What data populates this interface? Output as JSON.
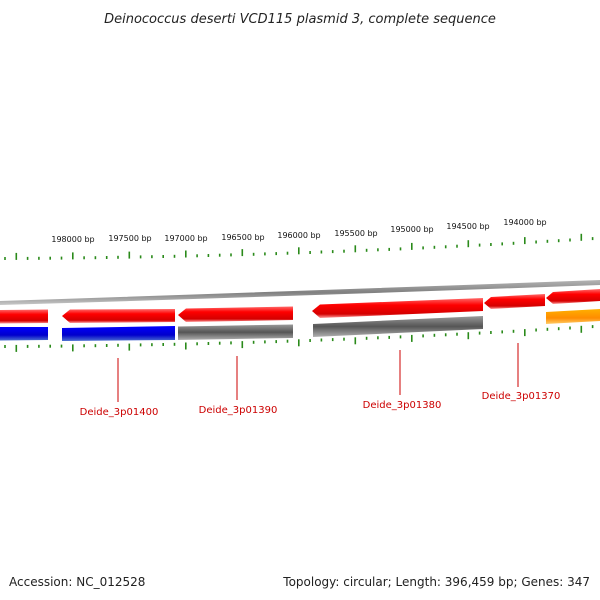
{
  "title": "Deinococcus deserti VCD115 plasmid 3, complete sequence",
  "footer": {
    "accession": "Accession: NC_012528",
    "summary": "Topology: circular; Length: 396,459 bp; Genes: 347"
  },
  "colors": {
    "tick": "#2a8a1a",
    "backbone": "#8c8c8c",
    "gene_label": "#cc0000",
    "red_gene": "#e60000",
    "blue_gene": "#0000dd",
    "gray_gene": "#666666",
    "orange_gene": "#ff8c00"
  },
  "scale": {
    "tick_labels": [
      "198000 bp",
      "197500 bp",
      "197000 bp",
      "196500 bp",
      "196000 bp",
      "195500 bp",
      "195000 bp",
      "194500 bp",
      "194000 bp"
    ]
  },
  "genes": {
    "forward_strand": [
      {
        "id": "gene-a",
        "color": "red",
        "direction": "left"
      },
      {
        "id": "gene-b",
        "color": "red",
        "direction": "left"
      },
      {
        "id": "gene-c",
        "color": "red",
        "direction": "left"
      },
      {
        "id": "gene-d",
        "color": "red",
        "direction": "left"
      },
      {
        "id": "gene-e",
        "color": "red",
        "direction": "left"
      },
      {
        "id": "gene-f",
        "color": "red",
        "direction": "left"
      }
    ],
    "reverse_strand": [
      {
        "id": "gene-g",
        "color": "blue"
      },
      {
        "id": "gene-h",
        "color": "blue"
      },
      {
        "id": "gene-i",
        "color": "gray"
      },
      {
        "id": "gene-j",
        "color": "gray"
      },
      {
        "id": "gene-k",
        "color": "orange"
      }
    ]
  },
  "gene_labels": [
    "Deide_3p01400",
    "Deide_3p01390",
    "Deide_3p01380",
    "Deide_3p01370"
  ]
}
